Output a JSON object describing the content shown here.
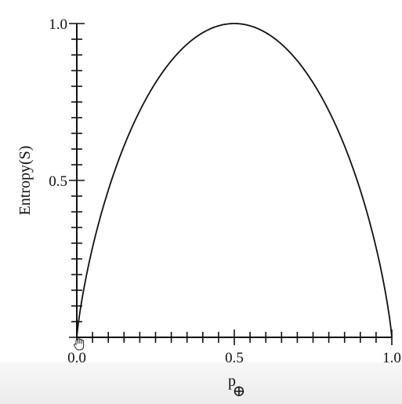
{
  "chart_data": {
    "type": "line",
    "title": "",
    "xlabel": "p",
    "xlabel_subscript": "⊕",
    "ylabel": "Entropy(S)",
    "xlim": [
      0,
      1
    ],
    "ylim": [
      0,
      1
    ],
    "grid": false,
    "legend": "none",
    "x_ticks": [
      {
        "value": 0.0,
        "label": "0.0"
      },
      {
        "value": 0.5,
        "label": "0.5"
      },
      {
        "value": 1.0,
        "label": "1.0"
      }
    ],
    "y_ticks": [
      {
        "value": 0.5,
        "label": "0.5"
      },
      {
        "value": 1.0,
        "label": "1.0"
      }
    ],
    "minor_tick_step": 0.05,
    "series": [
      {
        "function": "binary-entropy",
        "x": [
          0.0,
          0.05,
          0.1,
          0.15,
          0.2,
          0.25,
          0.3,
          0.35,
          0.4,
          0.45,
          0.5,
          0.55,
          0.6,
          0.65,
          0.7,
          0.75,
          0.8,
          0.85,
          0.9,
          0.95,
          1.0
        ],
        "values": [
          0.0,
          0.286,
          0.469,
          0.61,
          0.722,
          0.811,
          0.881,
          0.934,
          0.971,
          0.993,
          1.0,
          0.993,
          0.971,
          0.934,
          0.881,
          0.811,
          0.722,
          0.61,
          0.469,
          0.286,
          0.0
        ]
      }
    ],
    "colors": {
      "line": "#111111",
      "axis": "#111111",
      "background": "#ffffff"
    }
  },
  "overlay": {
    "cursor_icon": "hand-cursor-icon"
  }
}
